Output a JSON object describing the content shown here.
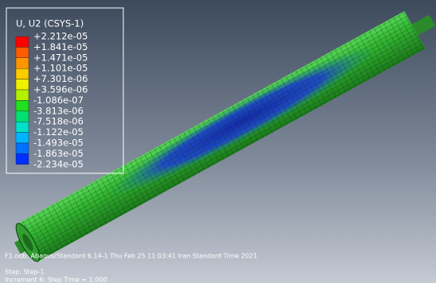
{
  "legend": {
    "title": "U, U2 (CSYS-1)",
    "labels": [
      "+2.212e-05",
      "+1.841e-05",
      "+1.471e-05",
      "+1.101e-05",
      "+7.301e-06",
      "+3.596e-06",
      "-1.086e-07",
      "-3.813e-06",
      "-7.518e-06",
      "-1.122e-05",
      "-1.493e-05",
      "-1.863e-05",
      "-2.234e-05"
    ],
    "colors": [
      "#ff0000",
      "#ff5a00",
      "#ff9600",
      "#ffcc00",
      "#f0f000",
      "#b4f000",
      "#20e020",
      "#00e070",
      "#00e0c8",
      "#00b4ff",
      "#0070ff",
      "#0030ff"
    ]
  },
  "footer": {
    "line1": "F1.odb:  Abaqus/Standard 6.14-1    Thu Feb 25 11:03:41 Iran Standard Time 2021",
    "line2": "Step: Step-1",
    "line3": "Increment    6: Step Time =    1.000"
  }
}
